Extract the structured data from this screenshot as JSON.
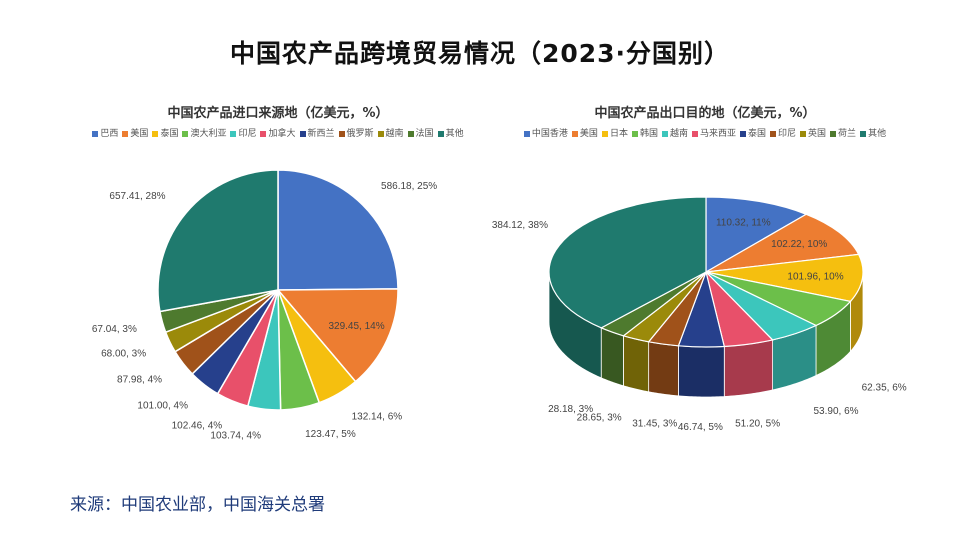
{
  "title": "中国农产品跨境贸易情况（2023·分国别）",
  "source": "来源：中国农业部，中国海关总署",
  "chart_data": [
    {
      "type": "pie",
      "title": "中国农产品进口来源地（亿美元，%）",
      "legend_position": "top",
      "start_angle": "12 o'clock, clockwise",
      "categories": [
        "巴西",
        "美国",
        "泰国",
        "澳大利亚",
        "印尼",
        "加拿大",
        "新西兰",
        "俄罗斯",
        "越南",
        "法国",
        "其他"
      ],
      "values": [
        586.18,
        329.45,
        132.14,
        123.47,
        103.74,
        102.46,
        101.0,
        87.98,
        68.0,
        67.04,
        657.41
      ],
      "labels": [
        "586.18, 25%",
        "329.45, 14%",
        "132.14, 6%",
        "123.47, 5%",
        "103.74, 4%",
        "102.46, 4%",
        "101.00, 4%",
        "87.98, 4%",
        "68.00, 3%",
        "67.04, 3%",
        "657.41, 28%"
      ],
      "colors": [
        "#4472C4",
        "#ED7D31",
        "#F5BF0F",
        "#6CBF4A",
        "#3CC6BC",
        "#E8506A",
        "#26408C",
        "#A0521A",
        "#9B8A0A",
        "#4E7A2E",
        "#1F7A6E"
      ]
    },
    {
      "type": "pie",
      "style": "3d",
      "title": "中国农产品出口目的地（亿美元，%）",
      "legend_position": "top",
      "start_angle": "12 o'clock, clockwise",
      "categories": [
        "中国香港",
        "美国",
        "日本",
        "韩国",
        "越南",
        "马来西亚",
        "泰国",
        "印尼",
        "英国",
        "荷兰",
        "其他"
      ],
      "values": [
        110.32,
        102.22,
        101.96,
        62.35,
        53.9,
        51.2,
        46.74,
        31.45,
        28.65,
        28.18,
        384.12
      ],
      "labels": [
        "110.32, 11%",
        "102.22, 10%",
        "101.96, 10%",
        "62.35, 6%",
        "53.90, 6%",
        "51.20, 5%",
        "46.74, 5%",
        "31.45, 3%",
        "28.65, 3%",
        "28.18, 3%",
        "384.12, 38%"
      ],
      "colors": [
        "#4472C4",
        "#ED7D31",
        "#F5BF0F",
        "#6CBF4A",
        "#3CC6BC",
        "#E8506A",
        "#26408C",
        "#A0521A",
        "#9B8A0A",
        "#4E7A2E",
        "#1F7A6E"
      ]
    }
  ]
}
